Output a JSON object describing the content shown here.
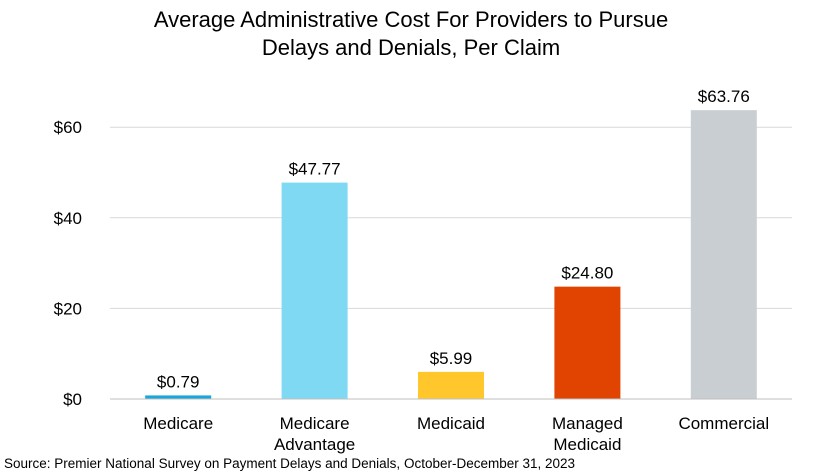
{
  "chart_data": {
    "type": "bar",
    "title_lines": [
      "Average Administrative Cost For Providers to Pursue",
      "Delays and Denials, Per Claim"
    ],
    "categories": [
      [
        "Medicare"
      ],
      [
        "Medicare",
        "Advantage"
      ],
      [
        "Medicaid"
      ],
      [
        "Managed",
        "Medicaid"
      ],
      [
        "Commercial"
      ]
    ],
    "values": [
      0.79,
      47.77,
      5.99,
      24.8,
      63.76
    ],
    "value_labels": [
      "$0.79",
      "$47.77",
      "$5.99",
      "$24.80",
      "$63.76"
    ],
    "colors": [
      "#1AA6D9",
      "#80D9F2",
      "#FFC72C",
      "#E04400",
      "#C9CED3"
    ],
    "yticks": [
      0,
      20,
      40,
      60
    ],
    "ytick_labels": [
      "$0",
      "$20",
      "$40",
      "$60"
    ],
    "ylim": [
      0,
      60
    ],
    "grid": true,
    "legend": "none"
  },
  "source_note": "Source: Premier National Survey on Payment Delays and Denials, October-December 31, 2023"
}
